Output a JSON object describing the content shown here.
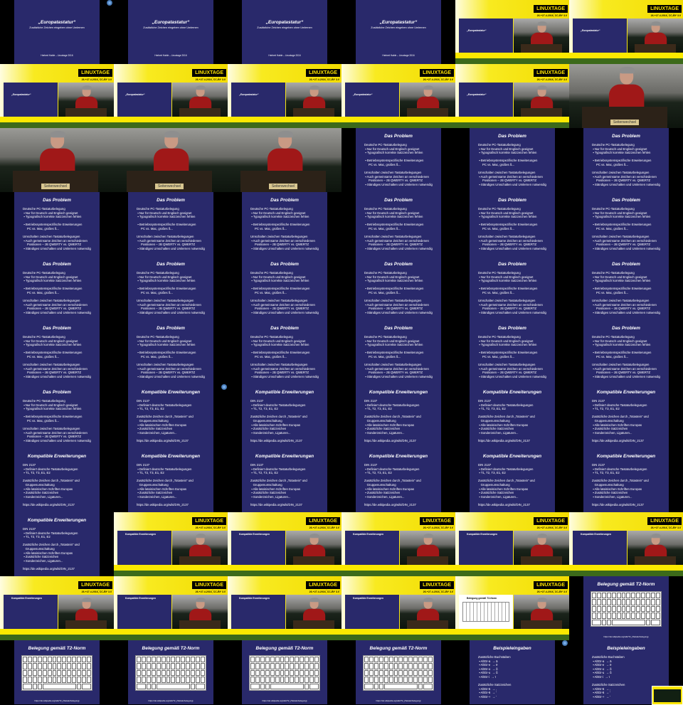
{
  "slides": {
    "title": {
      "heading": "„Europatastatur“",
      "subtitle": "Zusätzliche Zeichen eingeben ohne Umlernen",
      "footer": "Herbert Hable – Linuxtage 2016"
    },
    "problem": {
      "heading": "Das Problem",
      "body": "Deutsche PC-Tastaturbelegung\n ▪ Nur für Deutsch und Englisch geeignet\n ▪ Typografisch korrekte Satzzeichen fehlen\n\n ▪ Betriebssystemspezifische Erweiterungen\n     PC vs. Mac, großes ß...\n\nUmschalten zwischen Tastaturbelegungen\n ▪ Auch gemeinsame Zeichen an verschiedenen\n     Positionen – zB QWERTY vs. QWERTZ\n ▪ Ständiges Umschalten und Umlernen notwendig"
    },
    "compat": {
      "heading": "Kompatible Erweiterungen",
      "body": "DIN 2137\n ▪ Definiert deutsche Tastaturbelegungen\n ▪ T1, T2, T3, E1, E2\n\nZusätzliche Zeichen durch „Totastein“ und\n   Gruppenumschaltung\n ▪ Alle lateinischen Schriften Europas\n ▪ Zusätzliche Satzzeichen\n ▪ Sonderzeichen, Ligaturen...\n\nhttps://de.wikipedia.org/wiki/DIN_2137"
    },
    "t2": {
      "heading": "Belegung gemäß T2-Norm",
      "footer": "https://de.wikipedia.org/wiki/T2_(Tastaturbelegung)"
    },
    "examples": {
      "heading": "Beispieleingaben",
      "body": "Zusätzliche Buchstaben\n ▪ AltGr-a  → ä\n ▪ AltGr-e  → ë\n ▪ AltGr-o  → õ\n ▪ AltGr-u  → ů\n ▪ AltGr-i  → ï\n\nZusätzliche Satzzeichen\n ▪ AltGr-5  → ‚\n ▪ AltGr-6  → ‘\n ▪ AltGr-+  → ’"
    }
  },
  "stream": {
    "logo": "LINUXTAGE",
    "url": "www.linuxtage.at",
    "date": "26.+27.4.2016, CC-BY 3.0",
    "nameplate": "Seitenwechsel",
    "mini_compat": "Kompatible Erweiterungen",
    "mini_t2": "Belegung gemäß T2-Norm"
  },
  "thumbnails": [
    "title",
    "title",
    "title",
    "title",
    "stream-title",
    "stream-title",
    "stream-title",
    "stream-title",
    "stream-title",
    "stream-title",
    "stream-title",
    "cam",
    "cam",
    "cam",
    "cam",
    "problem",
    "problem",
    "problem",
    "problem",
    "problem",
    "problem",
    "problem",
    "problem",
    "problem",
    "problem",
    "problem",
    "problem",
    "problem",
    "problem",
    "problem",
    "problem",
    "problem",
    "problem",
    "problem",
    "problem",
    "problem",
    "problem",
    "compat",
    "compat",
    "compat",
    "compat",
    "compat",
    "compat",
    "compat",
    "compat",
    "compat",
    "compat",
    "compat",
    "compat",
    "stream-compat",
    "stream-compat",
    "stream-compat",
    "stream-compat",
    "stream-compat",
    "stream-compat",
    "stream-compat",
    "stream-compat",
    "stream-compat",
    "stream-t2",
    "t2",
    "t2",
    "t2",
    "t2",
    "t2",
    "examples",
    "examples"
  ],
  "colors": {
    "slide_bg": "#29296b",
    "stream_yellow": "#f6e600",
    "speaker_shirt": "#a01818"
  }
}
